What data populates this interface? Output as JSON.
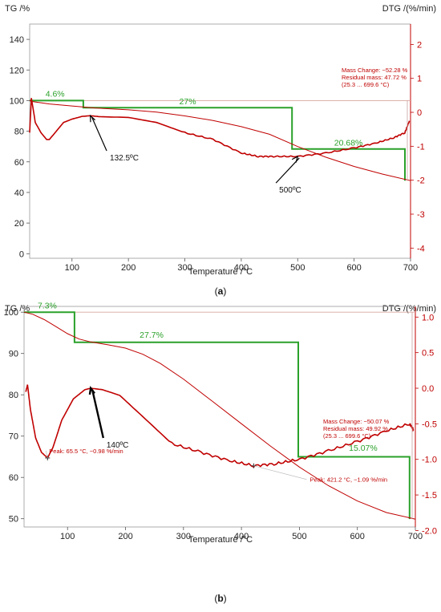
{
  "chart_data": [
    {
      "type": "line",
      "panel": "(a)",
      "panel_letter": "a",
      "ylabel": "TG /%",
      "y2label": "DTG /(%/min)",
      "xlabel": "Temperature /°C",
      "xlim": [
        25,
        700
      ],
      "ylim": [
        -3,
        150
      ],
      "y2lim": [
        -4.3,
        2.6
      ],
      "xticks": [
        100,
        200,
        300,
        400,
        500,
        600,
        700
      ],
      "yticks": [
        0,
        20,
        40,
        60,
        80,
        100,
        120,
        140
      ],
      "y2ticks": [
        2,
        1,
        0,
        -1,
        -2,
        -3,
        -4
      ],
      "baseline": 100,
      "series": [
        {
          "role": "TG",
          "color": "#c00000",
          "x": [
            25,
            30,
            60,
            100,
            120,
            140,
            200,
            250,
            300,
            350,
            400,
            450,
            500,
            550,
            600,
            650,
            700
          ],
          "y": [
            100,
            99.4,
            97.8,
            96.5,
            95.8,
            95.2,
            94,
            92.5,
            90,
            87,
            83,
            78,
            70,
            63,
            57,
            52,
            47.7
          ]
        },
        {
          "role": "DTG",
          "color": "#c00000",
          "x": [
            25,
            28,
            35,
            45,
            55,
            60,
            70,
            85,
            100,
            118,
            132.5,
            150,
            200,
            250,
            300,
            350,
            400,
            430,
            460,
            500,
            550,
            600,
            640,
            670,
            690,
            698
          ],
          "y": [
            -0.6,
            0.42,
            -0.3,
            -0.6,
            -0.8,
            -0.8,
            -0.6,
            -0.3,
            -0.2,
            -0.12,
            -0.1,
            -0.13,
            -0.15,
            -0.3,
            -0.6,
            -0.8,
            -1.2,
            -1.3,
            -1.3,
            -1.3,
            -1.2,
            -1.05,
            -0.9,
            -0.75,
            -0.6,
            -0.25
          ]
        }
      ],
      "steps": {
        "color": "#2aa12a",
        "x": [
          25,
          120,
          120,
          490,
          490,
          690,
          690
        ],
        "y": [
          100,
          100,
          95.4,
          95.4,
          68.4,
          68.4,
          47.72
        ]
      },
      "labels": [
        {
          "text": "4.6%",
          "x": 70,
          "y": 102.5
        },
        {
          "text": "27%",
          "x": 305,
          "y": 97.7
        },
        {
          "text": "20.68%",
          "x": 590,
          "y": 70.6
        }
      ],
      "annotations": [
        {
          "text": "132.5ºC",
          "x": 132.5,
          "tx": 170,
          "ty": 63
        },
        {
          "text": "500ºC",
          "x": 500,
          "tx": 470,
          "ty": 42
        }
      ],
      "mass_change": {
        "lines": [
          "Mass Change:   −52.28 %",
          "Residual mass:  47.72 %",
          "(25.3 ... 699.6 °C)"
        ]
      }
    },
    {
      "type": "line",
      "panel": "(b)",
      "panel_letter": "b",
      "ylabel": "TG /%",
      "y2label": "DTG /(%/min)",
      "xlabel": "Temperature /°C",
      "xlim": [
        25,
        700
      ],
      "ylim": [
        48,
        101.4
      ],
      "y2lim": [
        -1.95,
        1.15
      ],
      "xticks": [
        100,
        200,
        300,
        400,
        500,
        600,
        700
      ],
      "yticks": [
        50,
        60,
        70,
        80,
        90,
        100
      ],
      "y2ticks": [
        "1.0",
        "0.5",
        "0.0",
        "-0.5",
        "-1.0",
        "-1.5",
        "-2.0"
      ],
      "baseline": 100,
      "series": [
        {
          "role": "TG",
          "color": "#c00000",
          "x": [
            25,
            40,
            60,
            80,
            100,
            120,
            140,
            170,
            200,
            230,
            260,
            300,
            350,
            400,
            450,
            500,
            550,
            600,
            650,
            700
          ],
          "y": [
            100,
            99.5,
            98.2,
            96.5,
            94.8,
            93.5,
            92.8,
            92.1,
            91.3,
            89.8,
            87.6,
            83.8,
            78.4,
            73,
            67.6,
            62.5,
            58,
            54.3,
            51.5,
            49.9
          ]
        },
        {
          "role": "DTG",
          "color": "#c00000",
          "x": [
            28,
            31,
            36,
            45,
            55,
            65.5,
            75,
            90,
            110,
            130,
            140,
            160,
            190,
            230,
            280,
            330,
            380,
            421.2,
            460,
            500,
            550,
            600,
            650,
            690,
            697
          ],
          "y": [
            -0.05,
            0.05,
            -0.3,
            -0.7,
            -0.9,
            -0.98,
            -0.83,
            -0.45,
            -0.15,
            -0.02,
            0.0,
            -0.02,
            -0.1,
            -0.4,
            -0.78,
            -0.9,
            -1.02,
            -1.09,
            -1.06,
            -1.0,
            -0.88,
            -0.75,
            -0.6,
            -0.5,
            -0.58
          ]
        }
      ],
      "steps": {
        "color": "#2aa12a",
        "x": [
          25,
          112,
          112,
          498,
          498,
          690,
          690
        ],
        "y": [
          100,
          100,
          92.7,
          92.7,
          65,
          65,
          49.93
        ]
      },
      "labels": [
        {
          "text": "7.3%",
          "x": 65,
          "y": 100.9
        },
        {
          "text": "27.7%",
          "x": 245,
          "y": 93.8
        },
        {
          "text": "15.07%",
          "x": 610,
          "y": 66.4
        }
      ],
      "annotations": [
        {
          "text": "140ºC",
          "x": 140,
          "tx": 170,
          "ty": 68
        }
      ],
      "peaks": [
        {
          "text": "Peak: 65.5 °C, −0.98 %/min",
          "x": 65.5,
          "y": -0.98
        },
        {
          "text": "Peak: 421.2 °C, −1.09 %/min",
          "x": 421.2,
          "y": -1.09
        }
      ],
      "mass_change": {
        "lines": [
          "Mass Change:   −50.07 %",
          "Residual mass:  49.92 %",
          "(25.3 ... 699.6 °C)"
        ]
      }
    }
  ]
}
